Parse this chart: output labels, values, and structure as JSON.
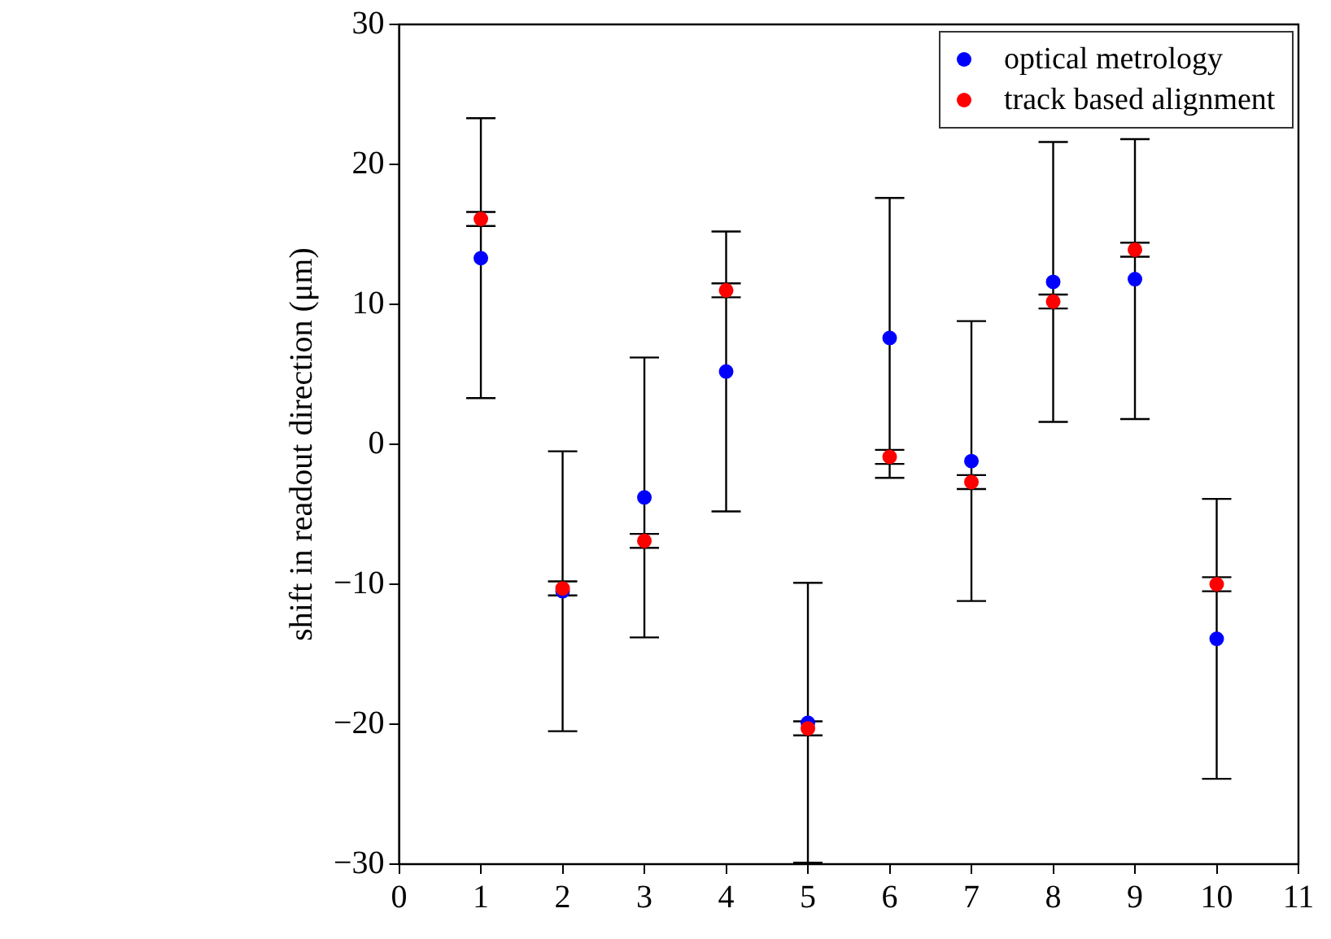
{
  "chart_data": {
    "type": "scatter",
    "ylabel": "shift in readout direction (μm)",
    "xlim": [
      0,
      11
    ],
    "xticks": [
      0,
      1,
      2,
      3,
      4,
      5,
      6,
      7,
      8,
      9,
      10,
      11
    ],
    "ylim": [
      -30,
      30
    ],
    "yticks": [
      -30,
      -20,
      -10,
      0,
      10,
      20,
      30
    ],
    "grid": false,
    "legend": "top right",
    "marker": "circle",
    "x": [
      1,
      2,
      3,
      4,
      5,
      6,
      7,
      8,
      9,
      10
    ],
    "series": [
      {
        "name": "optical metrology",
        "color": "#0000ff",
        "values": [
          13.3,
          -10.5,
          -3.8,
          5.2,
          -19.9,
          7.6,
          -1.2,
          11.6,
          11.8,
          -13.9
        ],
        "errors": [
          10,
          10,
          10,
          10,
          10,
          10,
          10,
          10,
          10,
          10
        ]
      },
      {
        "name": "track based alignment",
        "color": "#ff0000",
        "values": [
          16.1,
          -10.3,
          -6.9,
          11,
          -20.3,
          -0.9,
          -2.7,
          10.2,
          13.9,
          -10
        ],
        "errors": [
          0.5,
          0.5,
          0.5,
          0.5,
          0.5,
          0.5,
          0.5,
          0.5,
          0.5,
          0.5
        ]
      }
    ]
  }
}
